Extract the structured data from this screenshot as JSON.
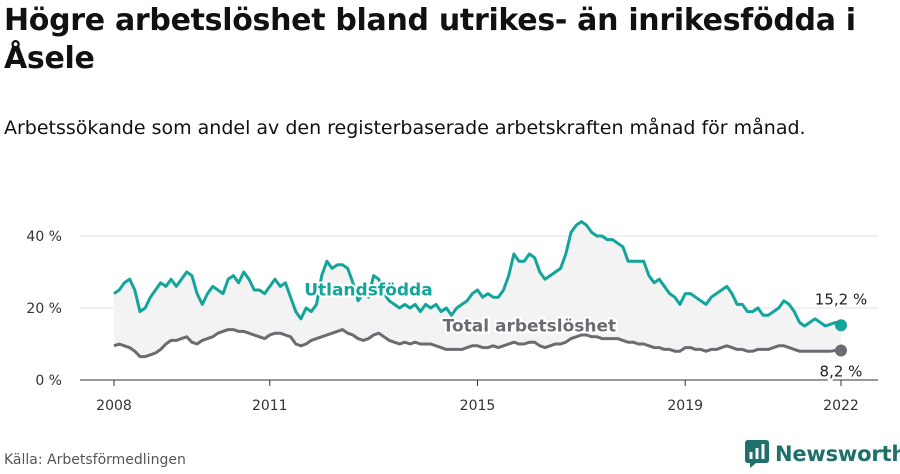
{
  "header": {
    "title": "Högre arbetslöshet bland utrikes- än inrikesfödda i Åsele",
    "subtitle": "Arbetssökande som andel av den registerbaserade arbetskraften månad för månad."
  },
  "footer": {
    "source": "Källa: Arbetsförmedlingen",
    "brand": "Newsworthy"
  },
  "colors": {
    "foreign_born": "#13a59a",
    "total": "#6b6b72",
    "band": "#f3f3f3",
    "grid": "#e2e2e2",
    "brand": "#1f6f6b"
  },
  "chart_data": {
    "type": "line",
    "xlim": [
      2007.7,
      2022.8
    ],
    "ylim": [
      0,
      45
    ],
    "x_ticks": [
      {
        "value": 2008,
        "label": "2008"
      },
      {
        "value": 2011,
        "label": "2011"
      },
      {
        "value": 2015,
        "label": "2015"
      },
      {
        "value": 2019,
        "label": "2019"
      },
      {
        "value": 2022,
        "label": "2022"
      }
    ],
    "y_ticks": [
      {
        "value": 0,
        "label": "0 %"
      },
      {
        "value": 20,
        "label": "20 %"
      },
      {
        "value": 40,
        "label": "40 %"
      }
    ],
    "grid": true,
    "shade_between_series": true,
    "series": [
      {
        "name": "Utlandsfödda",
        "end_label": "15,2 %",
        "points": [
          [
            2008.0,
            24
          ],
          [
            2008.1,
            25
          ],
          [
            2008.2,
            27
          ],
          [
            2008.3,
            28
          ],
          [
            2008.4,
            25
          ],
          [
            2008.5,
            19
          ],
          [
            2008.6,
            20
          ],
          [
            2008.7,
            23
          ],
          [
            2008.8,
            25
          ],
          [
            2008.9,
            27
          ],
          [
            2009.0,
            26
          ],
          [
            2009.1,
            28
          ],
          [
            2009.2,
            26
          ],
          [
            2009.3,
            28
          ],
          [
            2009.4,
            30
          ],
          [
            2009.5,
            29
          ],
          [
            2009.6,
            24
          ],
          [
            2009.7,
            21
          ],
          [
            2009.8,
            24
          ],
          [
            2009.9,
            26
          ],
          [
            2010.0,
            25
          ],
          [
            2010.1,
            24
          ],
          [
            2010.2,
            28
          ],
          [
            2010.3,
            29
          ],
          [
            2010.4,
            27
          ],
          [
            2010.5,
            30
          ],
          [
            2010.6,
            28
          ],
          [
            2010.7,
            25
          ],
          [
            2010.8,
            25
          ],
          [
            2010.9,
            24
          ],
          [
            2011.0,
            26
          ],
          [
            2011.1,
            28
          ],
          [
            2011.2,
            26
          ],
          [
            2011.3,
            27
          ],
          [
            2011.4,
            23
          ],
          [
            2011.5,
            19
          ],
          [
            2011.6,
            17
          ],
          [
            2011.7,
            20
          ],
          [
            2011.8,
            19
          ],
          [
            2011.9,
            21
          ],
          [
            2012.0,
            29
          ],
          [
            2012.1,
            33
          ],
          [
            2012.2,
            31
          ],
          [
            2012.3,
            32
          ],
          [
            2012.4,
            32
          ],
          [
            2012.5,
            31
          ],
          [
            2012.6,
            27
          ],
          [
            2012.7,
            22
          ],
          [
            2012.8,
            24
          ],
          [
            2012.9,
            23
          ],
          [
            2013.0,
            29
          ],
          [
            2013.1,
            28
          ],
          [
            2013.2,
            24
          ],
          [
            2013.3,
            22
          ],
          [
            2013.4,
            21
          ],
          [
            2013.5,
            20
          ],
          [
            2013.6,
            21
          ],
          [
            2013.7,
            20
          ],
          [
            2013.8,
            21
          ],
          [
            2013.9,
            19
          ],
          [
            2014.0,
            21
          ],
          [
            2014.1,
            20
          ],
          [
            2014.2,
            21
          ],
          [
            2014.3,
            19
          ],
          [
            2014.4,
            20
          ],
          [
            2014.5,
            18
          ],
          [
            2014.6,
            20
          ],
          [
            2014.7,
            21
          ],
          [
            2014.8,
            22
          ],
          [
            2014.9,
            24
          ],
          [
            2015.0,
            25
          ],
          [
            2015.1,
            23
          ],
          [
            2015.2,
            24
          ],
          [
            2015.3,
            23
          ],
          [
            2015.4,
            23
          ],
          [
            2015.5,
            25
          ],
          [
            2015.6,
            29
          ],
          [
            2015.7,
            35
          ],
          [
            2015.8,
            33
          ],
          [
            2015.9,
            33
          ],
          [
            2016.0,
            35
          ],
          [
            2016.1,
            34
          ],
          [
            2016.2,
            30
          ],
          [
            2016.3,
            28
          ],
          [
            2016.4,
            29
          ],
          [
            2016.5,
            30
          ],
          [
            2016.6,
            31
          ],
          [
            2016.7,
            35
          ],
          [
            2016.8,
            41
          ],
          [
            2016.9,
            43
          ],
          [
            2017.0,
            44
          ],
          [
            2017.1,
            43
          ],
          [
            2017.2,
            41
          ],
          [
            2017.3,
            40
          ],
          [
            2017.4,
            40
          ],
          [
            2017.5,
            39
          ],
          [
            2017.6,
            39
          ],
          [
            2017.7,
            38
          ],
          [
            2017.8,
            37
          ],
          [
            2017.9,
            33
          ],
          [
            2018.0,
            33
          ],
          [
            2018.1,
            33
          ],
          [
            2018.2,
            33
          ],
          [
            2018.3,
            29
          ],
          [
            2018.4,
            27
          ],
          [
            2018.5,
            28
          ],
          [
            2018.6,
            26
          ],
          [
            2018.7,
            24
          ],
          [
            2018.8,
            23
          ],
          [
            2018.9,
            21
          ],
          [
            2019.0,
            24
          ],
          [
            2019.1,
            24
          ],
          [
            2019.2,
            23
          ],
          [
            2019.3,
            22
          ],
          [
            2019.4,
            21
          ],
          [
            2019.5,
            23
          ],
          [
            2019.6,
            24
          ],
          [
            2019.7,
            25
          ],
          [
            2019.8,
            26
          ],
          [
            2019.9,
            24
          ],
          [
            2020.0,
            21
          ],
          [
            2020.1,
            21
          ],
          [
            2020.2,
            19
          ],
          [
            2020.3,
            19
          ],
          [
            2020.4,
            20
          ],
          [
            2020.5,
            18
          ],
          [
            2020.6,
            18
          ],
          [
            2020.7,
            19
          ],
          [
            2020.8,
            20
          ],
          [
            2020.9,
            22
          ],
          [
            2021.0,
            21
          ],
          [
            2021.1,
            19
          ],
          [
            2021.2,
            16
          ],
          [
            2021.3,
            15
          ],
          [
            2021.4,
            16
          ],
          [
            2021.5,
            17
          ],
          [
            2021.6,
            16
          ],
          [
            2021.7,
            15
          ],
          [
            2021.8,
            15.5
          ],
          [
            2021.9,
            16
          ],
          [
            2022.0,
            15.2
          ]
        ]
      },
      {
        "name": "Total arbetslöshet",
        "end_label": "8,2 %",
        "points": [
          [
            2008.0,
            9.5
          ],
          [
            2008.1,
            10
          ],
          [
            2008.2,
            9.5
          ],
          [
            2008.3,
            9
          ],
          [
            2008.4,
            8
          ],
          [
            2008.5,
            6.5
          ],
          [
            2008.6,
            6.5
          ],
          [
            2008.7,
            7
          ],
          [
            2008.8,
            7.5
          ],
          [
            2008.9,
            8.5
          ],
          [
            2009.0,
            10
          ],
          [
            2009.1,
            11
          ],
          [
            2009.2,
            11
          ],
          [
            2009.3,
            11.5
          ],
          [
            2009.4,
            12
          ],
          [
            2009.5,
            10.5
          ],
          [
            2009.6,
            10
          ],
          [
            2009.7,
            11
          ],
          [
            2009.8,
            11.5
          ],
          [
            2009.9,
            12
          ],
          [
            2010.0,
            13
          ],
          [
            2010.1,
            13.5
          ],
          [
            2010.2,
            14
          ],
          [
            2010.3,
            14
          ],
          [
            2010.4,
            13.5
          ],
          [
            2010.5,
            13.5
          ],
          [
            2010.6,
            13
          ],
          [
            2010.7,
            12.5
          ],
          [
            2010.8,
            12
          ],
          [
            2010.9,
            11.5
          ],
          [
            2011.0,
            12.5
          ],
          [
            2011.1,
            13
          ],
          [
            2011.2,
            13
          ],
          [
            2011.3,
            12.5
          ],
          [
            2011.4,
            12
          ],
          [
            2011.5,
            10
          ],
          [
            2011.6,
            9.5
          ],
          [
            2011.7,
            10
          ],
          [
            2011.8,
            11
          ],
          [
            2011.9,
            11.5
          ],
          [
            2012.0,
            12
          ],
          [
            2012.1,
            12.5
          ],
          [
            2012.2,
            13
          ],
          [
            2012.3,
            13.5
          ],
          [
            2012.4,
            14
          ],
          [
            2012.5,
            13
          ],
          [
            2012.6,
            12.5
          ],
          [
            2012.7,
            11.5
          ],
          [
            2012.8,
            11
          ],
          [
            2012.9,
            11.5
          ],
          [
            2013.0,
            12.5
          ],
          [
            2013.1,
            13
          ],
          [
            2013.2,
            12
          ],
          [
            2013.3,
            11
          ],
          [
            2013.4,
            10.5
          ],
          [
            2013.5,
            10
          ],
          [
            2013.6,
            10.5
          ],
          [
            2013.7,
            10
          ],
          [
            2013.8,
            10.5
          ],
          [
            2013.9,
            10
          ],
          [
            2014.0,
            10
          ],
          [
            2014.1,
            10
          ],
          [
            2014.2,
            9.5
          ],
          [
            2014.3,
            9
          ],
          [
            2014.4,
            8.5
          ],
          [
            2014.5,
            8.5
          ],
          [
            2014.6,
            8.5
          ],
          [
            2014.7,
            8.5
          ],
          [
            2014.8,
            9
          ],
          [
            2014.9,
            9.5
          ],
          [
            2015.0,
            9.5
          ],
          [
            2015.1,
            9
          ],
          [
            2015.2,
            9
          ],
          [
            2015.3,
            9.5
          ],
          [
            2015.4,
            9
          ],
          [
            2015.5,
            9.5
          ],
          [
            2015.6,
            10
          ],
          [
            2015.7,
            10.5
          ],
          [
            2015.8,
            10
          ],
          [
            2015.9,
            10
          ],
          [
            2016.0,
            10.5
          ],
          [
            2016.1,
            10.5
          ],
          [
            2016.2,
            9.5
          ],
          [
            2016.3,
            9
          ],
          [
            2016.4,
            9.5
          ],
          [
            2016.5,
            10
          ],
          [
            2016.6,
            10
          ],
          [
            2016.7,
            10.5
          ],
          [
            2016.8,
            11.5
          ],
          [
            2016.9,
            12
          ],
          [
            2017.0,
            12.5
          ],
          [
            2017.1,
            12.5
          ],
          [
            2017.2,
            12
          ],
          [
            2017.3,
            12
          ],
          [
            2017.4,
            11.5
          ],
          [
            2017.5,
            11.5
          ],
          [
            2017.6,
            11.5
          ],
          [
            2017.7,
            11.5
          ],
          [
            2017.8,
            11
          ],
          [
            2017.9,
            10.5
          ],
          [
            2018.0,
            10.5
          ],
          [
            2018.1,
            10
          ],
          [
            2018.2,
            10
          ],
          [
            2018.3,
            9.5
          ],
          [
            2018.4,
            9
          ],
          [
            2018.5,
            9
          ],
          [
            2018.6,
            8.5
          ],
          [
            2018.7,
            8.5
          ],
          [
            2018.8,
            8
          ],
          [
            2018.9,
            8
          ],
          [
            2019.0,
            9
          ],
          [
            2019.1,
            9
          ],
          [
            2019.2,
            8.5
          ],
          [
            2019.3,
            8.5
          ],
          [
            2019.4,
            8
          ],
          [
            2019.5,
            8.5
          ],
          [
            2019.6,
            8.5
          ],
          [
            2019.7,
            9
          ],
          [
            2019.8,
            9.5
          ],
          [
            2019.9,
            9
          ],
          [
            2020.0,
            8.5
          ],
          [
            2020.1,
            8.5
          ],
          [
            2020.2,
            8
          ],
          [
            2020.3,
            8
          ],
          [
            2020.4,
            8.5
          ],
          [
            2020.5,
            8.5
          ],
          [
            2020.6,
            8.5
          ],
          [
            2020.7,
            9
          ],
          [
            2020.8,
            9.5
          ],
          [
            2020.9,
            9.5
          ],
          [
            2021.0,
            9
          ],
          [
            2021.1,
            8.5
          ],
          [
            2021.2,
            8
          ],
          [
            2021.3,
            8
          ],
          [
            2021.4,
            8
          ],
          [
            2021.5,
            8
          ],
          [
            2021.6,
            8
          ],
          [
            2021.7,
            8
          ],
          [
            2021.8,
            8
          ],
          [
            2021.9,
            8.2
          ],
          [
            2022.0,
            8.2
          ]
        ]
      }
    ],
    "inline_labels": [
      {
        "text": "Utlandsfödda",
        "series": 0,
        "x": 2012.9,
        "y": 23.5
      },
      {
        "text": "Total arbetslöshet",
        "series": 1,
        "x": 2016.0,
        "y": 13.5
      }
    ]
  }
}
